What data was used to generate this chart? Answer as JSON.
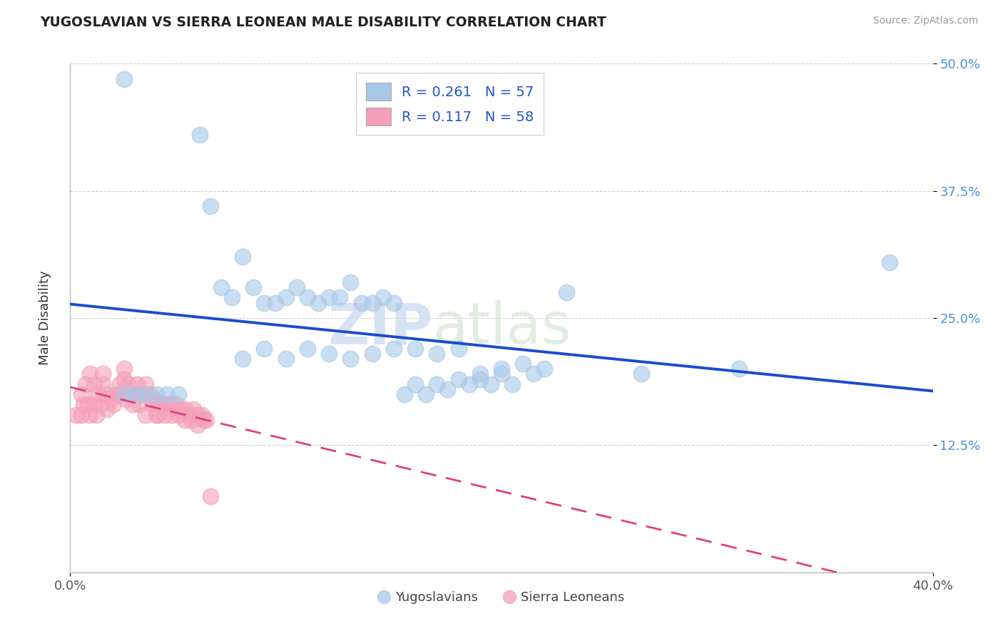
{
  "title": "YUGOSLAVIAN VS SIERRA LEONEAN MALE DISABILITY CORRELATION CHART",
  "source": "Source: ZipAtlas.com",
  "x_min": 0.0,
  "x_max": 0.4,
  "y_min": 0.0,
  "y_max": 0.5,
  "legend_labels": [
    "Yugoslavians",
    "Sierra Leoneans"
  ],
  "legend_r": [
    0.261,
    0.117
  ],
  "legend_n": [
    57,
    58
  ],
  "blue_color": "#a8c8e8",
  "pink_color": "#f4a0b8",
  "blue_line_color": "#1a4dcc",
  "pink_line_color": "#e04080",
  "watermark_zip": "ZIP",
  "watermark_atlas": "atlas",
  "background_color": "#ffffff",
  "grid_color": "#cccccc",
  "yugoslavian_x": [
    0.025,
    0.06,
    0.065,
    0.07,
    0.075,
    0.08,
    0.085,
    0.09,
    0.095,
    0.1,
    0.105,
    0.11,
    0.115,
    0.12,
    0.125,
    0.13,
    0.135,
    0.14,
    0.145,
    0.15,
    0.08,
    0.09,
    0.1,
    0.11,
    0.12,
    0.13,
    0.14,
    0.15,
    0.16,
    0.17,
    0.18,
    0.19,
    0.2,
    0.21,
    0.22,
    0.16,
    0.17,
    0.18,
    0.19,
    0.2,
    0.215,
    0.155,
    0.165,
    0.175,
    0.185,
    0.195,
    0.205,
    0.23,
    0.265,
    0.31,
    0.38,
    0.025,
    0.03,
    0.035,
    0.04,
    0.045,
    0.05
  ],
  "yugoslavian_y": [
    0.485,
    0.43,
    0.36,
    0.28,
    0.27,
    0.31,
    0.28,
    0.265,
    0.265,
    0.27,
    0.28,
    0.27,
    0.265,
    0.27,
    0.27,
    0.285,
    0.265,
    0.265,
    0.27,
    0.265,
    0.21,
    0.22,
    0.21,
    0.22,
    0.215,
    0.21,
    0.215,
    0.22,
    0.22,
    0.215,
    0.22,
    0.19,
    0.2,
    0.205,
    0.2,
    0.185,
    0.185,
    0.19,
    0.195,
    0.195,
    0.195,
    0.175,
    0.175,
    0.18,
    0.185,
    0.185,
    0.185,
    0.275,
    0.195,
    0.2,
    0.305,
    0.175,
    0.175,
    0.175,
    0.175,
    0.175,
    0.175
  ],
  "sierraleone_x": [
    0.005,
    0.007,
    0.009,
    0.011,
    0.013,
    0.015,
    0.017,
    0.019,
    0.021,
    0.023,
    0.025,
    0.027,
    0.029,
    0.031,
    0.033,
    0.035,
    0.037,
    0.039,
    0.041,
    0.043,
    0.045,
    0.047,
    0.049,
    0.051,
    0.053,
    0.055,
    0.057,
    0.059,
    0.061,
    0.063,
    0.005,
    0.008,
    0.011,
    0.014,
    0.017,
    0.02,
    0.023,
    0.026,
    0.029,
    0.032,
    0.035,
    0.038,
    0.041,
    0.044,
    0.047,
    0.05,
    0.053,
    0.056,
    0.059,
    0.062,
    0.003,
    0.006,
    0.009,
    0.012,
    0.015,
    0.025,
    0.04,
    0.065
  ],
  "sierraleone_y": [
    0.175,
    0.185,
    0.195,
    0.185,
    0.175,
    0.185,
    0.175,
    0.17,
    0.175,
    0.185,
    0.19,
    0.185,
    0.175,
    0.185,
    0.175,
    0.185,
    0.175,
    0.17,
    0.165,
    0.165,
    0.165,
    0.165,
    0.165,
    0.16,
    0.16,
    0.155,
    0.16,
    0.155,
    0.155,
    0.15,
    0.155,
    0.165,
    0.165,
    0.165,
    0.16,
    0.165,
    0.175,
    0.17,
    0.165,
    0.165,
    0.155,
    0.165,
    0.155,
    0.155,
    0.155,
    0.155,
    0.15,
    0.15,
    0.145,
    0.15,
    0.155,
    0.165,
    0.155,
    0.155,
    0.195,
    0.2,
    0.155,
    0.075
  ]
}
